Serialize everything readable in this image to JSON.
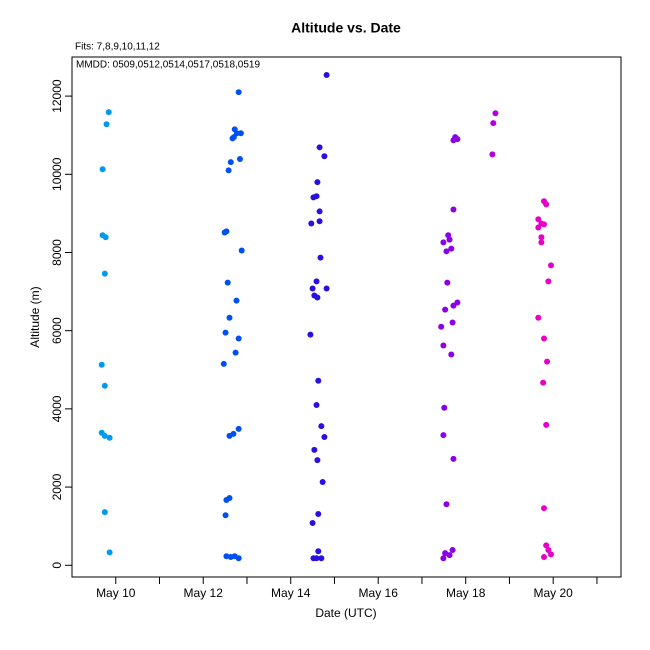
{
  "chart_data": {
    "type": "scatter",
    "title": "Altitude  vs. Date",
    "subtitle": "Fits: 7,8,9,10,11,12",
    "annotation": "MMDD: 0509,0512,0514,0517,0518,0519",
    "x_label": "Date (UTC)",
    "y_label": "Altitude (m)",
    "xlim": [
      9.0,
      21.55
    ],
    "ylim": [
      -300,
      13000
    ],
    "xticks": [
      {
        "value": 10,
        "label": "May 10"
      },
      {
        "value": 12,
        "label": "May 12"
      },
      {
        "value": 14,
        "label": "May 14"
      },
      {
        "value": 16,
        "label": "May 16"
      },
      {
        "value": 18,
        "label": "May 18"
      },
      {
        "value": 20,
        "label": "May 20"
      }
    ],
    "xminorticks": [
      11,
      13,
      15,
      17,
      19,
      21
    ],
    "yticks": [
      0,
      2000,
      4000,
      6000,
      8000,
      10000,
      12000
    ],
    "series": [
      {
        "color": "#0099ee",
        "x": [
          9.84,
          9.79,
          9.7,
          9.7,
          9.77,
          9.75,
          9.68,
          9.75,
          9.68,
          9.75,
          9.86,
          9.75,
          9.86
        ],
        "values": [
          11590,
          11280,
          10130,
          8440,
          8390,
          7460,
          5130,
          4590,
          3390,
          3310,
          3260,
          1360,
          330
        ]
      },
      {
        "color": "#0050f0",
        "x": [
          12.81,
          12.72,
          12.77,
          12.7,
          12.86,
          12.67,
          12.84,
          12.63,
          12.58,
          12.53,
          12.49,
          12.88,
          12.56,
          12.76,
          12.6,
          12.51,
          12.81,
          12.74,
          12.47,
          12.81,
          12.69,
          12.6,
          12.6,
          12.53,
          12.51,
          12.53,
          12.63,
          12.72,
          12.81
        ],
        "values": [
          12100,
          11150,
          11050,
          10950,
          11050,
          10920,
          10390,
          10310,
          10100,
          8540,
          8510,
          8050,
          7230,
          6770,
          6330,
          5950,
          5800,
          5440,
          5150,
          3490,
          3360,
          3310,
          1720,
          1670,
          1280,
          230,
          210,
          230,
          180
        ]
      },
      {
        "color": "#2a10e0",
        "x": [
          14.82,
          14.66,
          14.77,
          14.61,
          14.59,
          14.52,
          14.66,
          14.66,
          14.47,
          14.68,
          14.59,
          14.5,
          14.82,
          14.54,
          14.61,
          14.45,
          14.63,
          14.59,
          14.7,
          14.77,
          14.54,
          14.61,
          14.73,
          14.63,
          14.5,
          14.63,
          14.52,
          14.59,
          14.7
        ],
        "values": [
          12540,
          10690,
          10460,
          9800,
          9440,
          9410,
          9050,
          8800,
          8740,
          7870,
          7260,
          7080,
          7080,
          6900,
          6850,
          5900,
          4720,
          4100,
          3560,
          3280,
          2950,
          2690,
          2130,
          1310,
          1080,
          360,
          180,
          180,
          180
        ]
      },
      {
        "color": "#8a00e8",
        "x": [
          17.81,
          17.76,
          17.72,
          17.72,
          17.6,
          17.63,
          17.49,
          17.67,
          17.56,
          17.58,
          17.81,
          17.72,
          17.53,
          17.7,
          17.44,
          17.49,
          17.67,
          17.51,
          17.49,
          17.72,
          17.56,
          17.7,
          17.53,
          17.63,
          17.49
        ],
        "values": [
          10900,
          10950,
          10870,
          9100,
          8440,
          8330,
          8260,
          8100,
          8030,
          7230,
          6720,
          6640,
          6540,
          6210,
          6100,
          5620,
          5390,
          4030,
          3330,
          2720,
          1560,
          390,
          310,
          260,
          180
        ]
      },
      {
        "color": "#b400e0",
        "x": [
          18.68,
          18.63,
          18.61
        ],
        "values": [
          11560,
          11310,
          10510
        ]
      },
      {
        "color": "#e600c8",
        "x": [
          19.79,
          19.84,
          19.66,
          19.73,
          19.79,
          19.66,
          19.73,
          19.73,
          19.95,
          19.89,
          19.66,
          19.79,
          19.86,
          19.77,
          19.84,
          19.79,
          19.84,
          19.89,
          19.95,
          19.79
        ],
        "values": [
          9310,
          9230,
          8850,
          8740,
          8720,
          8640,
          8390,
          8260,
          7670,
          7260,
          6330,
          5800,
          5210,
          4670,
          3590,
          1460,
          510,
          390,
          280,
          210
        ]
      }
    ]
  }
}
